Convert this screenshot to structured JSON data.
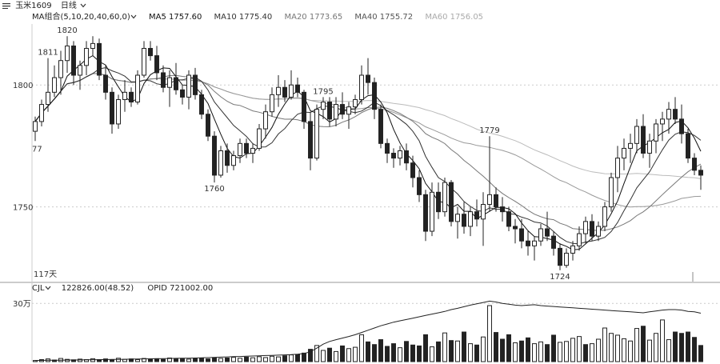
{
  "header": {
    "instrument_icon": "chart-icon",
    "instrument": "玉米1609",
    "period_label": "日线",
    "period_icon": "chevron-down-icon"
  },
  "ma_legend": {
    "group_label": "MA组合(5,10,20,40,60,0)",
    "group_icon": "chevron-down-icon",
    "ma5": "MA5 1757.60",
    "ma10": "MA10 1775.40",
    "ma20": "MA20 1773.65",
    "ma40": "MA40 1755.72",
    "ma60": "MA60 1756.05"
  },
  "vol_legend": {
    "indicator": "CJL",
    "indicator_icon": "chevron-down-icon",
    "cjl": "122826.00(48.52)",
    "opid": "OPID 721002.00"
  },
  "colors": {
    "up": "#ffffff",
    "down": "#222222",
    "ma5": "#111111",
    "ma10": "#333333",
    "ma20": "#777777",
    "ma40": "#999999",
    "ma60": "#bbbbbb",
    "oi": "#222222",
    "grid": "#cccccc"
  },
  "chart_data": {
    "type": "candlestick",
    "price_axis_ticks": [
      1750,
      1800
    ],
    "volume_axis_ticks": [
      "30万"
    ],
    "annotations": [
      {
        "label": "1820",
        "value": 1820,
        "kind": "high"
      },
      {
        "label": "1811",
        "value": 1811,
        "kind": "high"
      },
      {
        "label": "1779",
        "value": 1779,
        "kind": "high"
      },
      {
        "label": "1795",
        "value": 1795,
        "kind": "high"
      },
      {
        "label": "1760",
        "value": 1760,
        "kind": "low"
      },
      {
        "label": "1724",
        "value": 1724,
        "kind": "low"
      }
    ],
    "left_labels": [
      "77",
      "117天"
    ],
    "ylim": [
      1720,
      1825
    ],
    "volume_ylim": [
      0,
      300000
    ],
    "candles": [
      {
        "o": 1781,
        "h": 1787,
        "l": 1777,
        "c": 1785
      },
      {
        "o": 1785,
        "h": 1794,
        "l": 1783,
        "c": 1792
      },
      {
        "o": 1792,
        "h": 1811,
        "l": 1789,
        "c": 1797
      },
      {
        "o": 1797,
        "h": 1808,
        "l": 1795,
        "c": 1803
      },
      {
        "o": 1803,
        "h": 1814,
        "l": 1796,
        "c": 1810
      },
      {
        "o": 1810,
        "h": 1820,
        "l": 1805,
        "c": 1816
      },
      {
        "o": 1816,
        "h": 1818,
        "l": 1800,
        "c": 1804
      },
      {
        "o": 1804,
        "h": 1810,
        "l": 1798,
        "c": 1808
      },
      {
        "o": 1808,
        "h": 1818,
        "l": 1804,
        "c": 1815
      },
      {
        "o": 1815,
        "h": 1820,
        "l": 1812,
        "c": 1817
      },
      {
        "o": 1817,
        "h": 1819,
        "l": 1802,
        "c": 1804
      },
      {
        "o": 1804,
        "h": 1808,
        "l": 1794,
        "c": 1797
      },
      {
        "o": 1797,
        "h": 1799,
        "l": 1780,
        "c": 1784
      },
      {
        "o": 1784,
        "h": 1796,
        "l": 1782,
        "c": 1794
      },
      {
        "o": 1794,
        "h": 1802,
        "l": 1789,
        "c": 1797
      },
      {
        "o": 1797,
        "h": 1799,
        "l": 1791,
        "c": 1793
      },
      {
        "o": 1793,
        "h": 1806,
        "l": 1792,
        "c": 1804
      },
      {
        "o": 1804,
        "h": 1818,
        "l": 1803,
        "c": 1815
      },
      {
        "o": 1815,
        "h": 1818,
        "l": 1810,
        "c": 1812
      },
      {
        "o": 1812,
        "h": 1816,
        "l": 1802,
        "c": 1805
      },
      {
        "o": 1805,
        "h": 1808,
        "l": 1797,
        "c": 1799
      },
      {
        "o": 1799,
        "h": 1806,
        "l": 1791,
        "c": 1803
      },
      {
        "o": 1803,
        "h": 1809,
        "l": 1796,
        "c": 1798
      },
      {
        "o": 1798,
        "h": 1800,
        "l": 1792,
        "c": 1795
      },
      {
        "o": 1795,
        "h": 1806,
        "l": 1790,
        "c": 1804
      },
      {
        "o": 1804,
        "h": 1807,
        "l": 1794,
        "c": 1796
      },
      {
        "o": 1796,
        "h": 1798,
        "l": 1786,
        "c": 1788
      },
      {
        "o": 1788,
        "h": 1790,
        "l": 1777,
        "c": 1779
      },
      {
        "o": 1779,
        "h": 1781,
        "l": 1760,
        "c": 1763
      },
      {
        "o": 1763,
        "h": 1775,
        "l": 1762,
        "c": 1773
      },
      {
        "o": 1773,
        "h": 1776,
        "l": 1764,
        "c": 1767
      },
      {
        "o": 1767,
        "h": 1773,
        "l": 1765,
        "c": 1771
      },
      {
        "o": 1771,
        "h": 1778,
        "l": 1768,
        "c": 1776
      },
      {
        "o": 1776,
        "h": 1778,
        "l": 1770,
        "c": 1772
      },
      {
        "o": 1772,
        "h": 1776,
        "l": 1768,
        "c": 1774
      },
      {
        "o": 1774,
        "h": 1784,
        "l": 1773,
        "c": 1782
      },
      {
        "o": 1782,
        "h": 1792,
        "l": 1778,
        "c": 1789
      },
      {
        "o": 1789,
        "h": 1799,
        "l": 1787,
        "c": 1796
      },
      {
        "o": 1796,
        "h": 1804,
        "l": 1791,
        "c": 1799
      },
      {
        "o": 1799,
        "h": 1802,
        "l": 1793,
        "c": 1795
      },
      {
        "o": 1795,
        "h": 1806,
        "l": 1794,
        "c": 1800
      },
      {
        "o": 1800,
        "h": 1803,
        "l": 1795,
        "c": 1797
      },
      {
        "o": 1797,
        "h": 1798,
        "l": 1782,
        "c": 1785
      },
      {
        "o": 1785,
        "h": 1789,
        "l": 1765,
        "c": 1770
      },
      {
        "o": 1770,
        "h": 1792,
        "l": 1769,
        "c": 1790
      },
      {
        "o": 1790,
        "h": 1795,
        "l": 1786,
        "c": 1793
      },
      {
        "o": 1793,
        "h": 1795,
        "l": 1783,
        "c": 1786
      },
      {
        "o": 1786,
        "h": 1795,
        "l": 1783,
        "c": 1792
      },
      {
        "o": 1792,
        "h": 1797,
        "l": 1786,
        "c": 1788
      },
      {
        "o": 1788,
        "h": 1793,
        "l": 1782,
        "c": 1791
      },
      {
        "o": 1791,
        "h": 1796,
        "l": 1788,
        "c": 1794
      },
      {
        "o": 1794,
        "h": 1808,
        "l": 1792,
        "c": 1804
      },
      {
        "o": 1804,
        "h": 1811,
        "l": 1796,
        "c": 1801
      },
      {
        "o": 1801,
        "h": 1803,
        "l": 1786,
        "c": 1790
      },
      {
        "o": 1790,
        "h": 1792,
        "l": 1774,
        "c": 1776
      },
      {
        "o": 1776,
        "h": 1778,
        "l": 1768,
        "c": 1772
      },
      {
        "o": 1772,
        "h": 1774,
        "l": 1766,
        "c": 1770
      },
      {
        "o": 1770,
        "h": 1775,
        "l": 1767,
        "c": 1773
      },
      {
        "o": 1773,
        "h": 1776,
        "l": 1765,
        "c": 1768
      },
      {
        "o": 1768,
        "h": 1771,
        "l": 1758,
        "c": 1762
      },
      {
        "o": 1762,
        "h": 1765,
        "l": 1752,
        "c": 1755
      },
      {
        "o": 1755,
        "h": 1757,
        "l": 1736,
        "c": 1740
      },
      {
        "o": 1740,
        "h": 1760,
        "l": 1738,
        "c": 1756
      },
      {
        "o": 1756,
        "h": 1760,
        "l": 1745,
        "c": 1748
      },
      {
        "o": 1748,
        "h": 1762,
        "l": 1746,
        "c": 1760
      },
      {
        "o": 1760,
        "h": 1761,
        "l": 1742,
        "c": 1744
      },
      {
        "o": 1744,
        "h": 1750,
        "l": 1737,
        "c": 1747
      },
      {
        "o": 1747,
        "h": 1752,
        "l": 1739,
        "c": 1742
      },
      {
        "o": 1742,
        "h": 1750,
        "l": 1738,
        "c": 1748
      },
      {
        "o": 1748,
        "h": 1753,
        "l": 1742,
        "c": 1745
      },
      {
        "o": 1745,
        "h": 1756,
        "l": 1734,
        "c": 1751
      },
      {
        "o": 1751,
        "h": 1779,
        "l": 1748,
        "c": 1755
      },
      {
        "o": 1755,
        "h": 1758,
        "l": 1748,
        "c": 1750
      },
      {
        "o": 1750,
        "h": 1754,
        "l": 1744,
        "c": 1748
      },
      {
        "o": 1748,
        "h": 1750,
        "l": 1740,
        "c": 1742
      },
      {
        "o": 1742,
        "h": 1745,
        "l": 1735,
        "c": 1741
      },
      {
        "o": 1741,
        "h": 1745,
        "l": 1733,
        "c": 1736
      },
      {
        "o": 1736,
        "h": 1740,
        "l": 1730,
        "c": 1734
      },
      {
        "o": 1734,
        "h": 1738,
        "l": 1728,
        "c": 1736
      },
      {
        "o": 1736,
        "h": 1743,
        "l": 1734,
        "c": 1741
      },
      {
        "o": 1741,
        "h": 1748,
        "l": 1736,
        "c": 1738
      },
      {
        "o": 1738,
        "h": 1740,
        "l": 1730,
        "c": 1733
      },
      {
        "o": 1733,
        "h": 1735,
        "l": 1724,
        "c": 1726
      },
      {
        "o": 1726,
        "h": 1733,
        "l": 1725,
        "c": 1731
      },
      {
        "o": 1731,
        "h": 1736,
        "l": 1728,
        "c": 1734
      },
      {
        "o": 1734,
        "h": 1742,
        "l": 1732,
        "c": 1739
      },
      {
        "o": 1739,
        "h": 1746,
        "l": 1735,
        "c": 1744
      },
      {
        "o": 1744,
        "h": 1747,
        "l": 1736,
        "c": 1738
      },
      {
        "o": 1738,
        "h": 1744,
        "l": 1736,
        "c": 1742
      },
      {
        "o": 1742,
        "h": 1752,
        "l": 1740,
        "c": 1750
      },
      {
        "o": 1750,
        "h": 1764,
        "l": 1748,
        "c": 1762
      },
      {
        "o": 1762,
        "h": 1775,
        "l": 1756,
        "c": 1770
      },
      {
        "o": 1770,
        "h": 1778,
        "l": 1765,
        "c": 1774
      },
      {
        "o": 1774,
        "h": 1780,
        "l": 1768,
        "c": 1776
      },
      {
        "o": 1776,
        "h": 1786,
        "l": 1772,
        "c": 1783
      },
      {
        "o": 1783,
        "h": 1788,
        "l": 1770,
        "c": 1772
      },
      {
        "o": 1772,
        "h": 1780,
        "l": 1766,
        "c": 1777
      },
      {
        "o": 1777,
        "h": 1786,
        "l": 1772,
        "c": 1784
      },
      {
        "o": 1784,
        "h": 1789,
        "l": 1777,
        "c": 1786
      },
      {
        "o": 1786,
        "h": 1793,
        "l": 1780,
        "c": 1790
      },
      {
        "o": 1790,
        "h": 1795,
        "l": 1784,
        "c": 1786
      },
      {
        "o": 1786,
        "h": 1792,
        "l": 1776,
        "c": 1780
      },
      {
        "o": 1780,
        "h": 1782,
        "l": 1768,
        "c": 1770
      },
      {
        "o": 1770,
        "h": 1772,
        "l": 1763,
        "c": 1765
      },
      {
        "o": 1765,
        "h": 1767,
        "l": 1757,
        "c": 1763
      }
    ],
    "volumes": [
      {
        "v": 5000,
        "up": true
      },
      {
        "v": 9000,
        "up": true
      },
      {
        "v": 12000,
        "up": true
      },
      {
        "v": 7000,
        "up": false
      },
      {
        "v": 14000,
        "up": true
      },
      {
        "v": 10000,
        "up": true
      },
      {
        "v": 8000,
        "up": false
      },
      {
        "v": 11000,
        "up": true
      },
      {
        "v": 9000,
        "up": true
      },
      {
        "v": 13000,
        "up": true
      },
      {
        "v": 9000,
        "up": false
      },
      {
        "v": 12000,
        "up": false
      },
      {
        "v": 8000,
        "up": false
      },
      {
        "v": 15000,
        "up": true
      },
      {
        "v": 10000,
        "up": true
      },
      {
        "v": 12000,
        "up": false
      },
      {
        "v": 9000,
        "up": true
      },
      {
        "v": 14000,
        "up": true
      },
      {
        "v": 11000,
        "up": false
      },
      {
        "v": 13000,
        "up": false
      },
      {
        "v": 10000,
        "up": false
      },
      {
        "v": 16000,
        "up": true
      },
      {
        "v": 12000,
        "up": false
      },
      {
        "v": 14000,
        "up": false
      },
      {
        "v": 11000,
        "up": true
      },
      {
        "v": 13000,
        "up": false
      },
      {
        "v": 15000,
        "up": false
      },
      {
        "v": 12000,
        "up": false
      },
      {
        "v": 18000,
        "up": false
      },
      {
        "v": 14000,
        "up": true
      },
      {
        "v": 16000,
        "up": false
      },
      {
        "v": 19000,
        "up": true
      },
      {
        "v": 15000,
        "up": true
      },
      {
        "v": 20000,
        "up": false
      },
      {
        "v": 17000,
        "up": true
      },
      {
        "v": 22000,
        "up": true
      },
      {
        "v": 18000,
        "up": true
      },
      {
        "v": 24000,
        "up": true
      },
      {
        "v": 21000,
        "up": true
      },
      {
        "v": 26000,
        "up": false
      },
      {
        "v": 30000,
        "up": true
      },
      {
        "v": 32000,
        "up": false
      },
      {
        "v": 38000,
        "up": false
      },
      {
        "v": 55000,
        "up": false
      },
      {
        "v": 72000,
        "up": true
      },
      {
        "v": 50000,
        "up": true
      },
      {
        "v": 60000,
        "up": false
      },
      {
        "v": 45000,
        "up": true
      },
      {
        "v": 70000,
        "up": false
      },
      {
        "v": 58000,
        "up": true
      },
      {
        "v": 64000,
        "up": true
      },
      {
        "v": 120000,
        "up": true
      },
      {
        "v": 88000,
        "up": false
      },
      {
        "v": 76000,
        "up": false
      },
      {
        "v": 98000,
        "up": false
      },
      {
        "v": 68000,
        "up": false
      },
      {
        "v": 80000,
        "up": false
      },
      {
        "v": 62000,
        "up": true
      },
      {
        "v": 90000,
        "up": false
      },
      {
        "v": 74000,
        "up": false
      },
      {
        "v": 70000,
        "up": false
      },
      {
        "v": 120000,
        "up": false
      },
      {
        "v": 66000,
        "up": true
      },
      {
        "v": 88000,
        "up": false
      },
      {
        "v": 128000,
        "up": true
      },
      {
        "v": 94000,
        "up": false
      },
      {
        "v": 92000,
        "up": true
      },
      {
        "v": 132000,
        "up": false
      },
      {
        "v": 80000,
        "up": true
      },
      {
        "v": 74000,
        "up": false
      },
      {
        "v": 110000,
        "up": true
      },
      {
        "v": 250000,
        "up": true
      },
      {
        "v": 130000,
        "up": false
      },
      {
        "v": 100000,
        "up": false
      },
      {
        "v": 120000,
        "up": false
      },
      {
        "v": 84000,
        "up": true
      },
      {
        "v": 92000,
        "up": false
      },
      {
        "v": 106000,
        "up": false
      },
      {
        "v": 80000,
        "up": true
      },
      {
        "v": 88000,
        "up": true
      },
      {
        "v": 76000,
        "up": false
      },
      {
        "v": 118000,
        "up": false
      },
      {
        "v": 86000,
        "up": true
      },
      {
        "v": 90000,
        "up": true
      },
      {
        "v": 104000,
        "up": true
      },
      {
        "v": 112000,
        "up": true
      },
      {
        "v": 76000,
        "up": false
      },
      {
        "v": 80000,
        "up": true
      },
      {
        "v": 100000,
        "up": true
      },
      {
        "v": 150000,
        "up": true
      },
      {
        "v": 126000,
        "up": true
      },
      {
        "v": 118000,
        "up": true
      },
      {
        "v": 102000,
        "up": true
      },
      {
        "v": 92000,
        "up": true
      },
      {
        "v": 148000,
        "up": true
      },
      {
        "v": 158000,
        "up": false
      },
      {
        "v": 96000,
        "up": true
      },
      {
        "v": 126000,
        "up": true
      },
      {
        "v": 186000,
        "up": true
      },
      {
        "v": 98000,
        "up": true
      },
      {
        "v": 132000,
        "up": false
      },
      {
        "v": 126000,
        "up": false
      },
      {
        "v": 132000,
        "up": false
      },
      {
        "v": 108000,
        "up": false
      },
      {
        "v": 72000,
        "up": false
      }
    ],
    "open_interest": [
      5000,
      5500,
      6000,
      6000,
      6500,
      7000,
      7000,
      7500,
      8000,
      8500,
      8500,
      9000,
      9500,
      10000,
      10500,
      11000,
      11500,
      12000,
      12500,
      13000,
      13500,
      14000,
      14500,
      15000,
      15500,
      16000,
      17000,
      18000,
      19000,
      20000,
      21000,
      22000,
      23000,
      24000,
      25000,
      26000,
      27000,
      28000,
      29000,
      30000,
      31000,
      33000,
      36000,
      44000,
      60000,
      78000,
      90000,
      98000,
      105000,
      112000,
      120000,
      130000,
      140000,
      150000,
      160000,
      168000,
      176000,
      182000,
      188000,
      194000,
      200000,
      206000,
      212000,
      218000,
      224000,
      232000,
      238000,
      245000,
      252000,
      258000,
      264000,
      270000,
      266000,
      260000,
      256000,
      252000,
      250000,
      252000,
      254000,
      250000,
      248000,
      246000,
      244000,
      242000,
      240000,
      238000,
      236000,
      234000,
      232000,
      230000,
      228000,
      226000,
      224000,
      222000,
      220000,
      218000,
      222000,
      226000,
      230000,
      232000,
      232000,
      230000,
      224000,
      222000,
      216000
    ]
  }
}
